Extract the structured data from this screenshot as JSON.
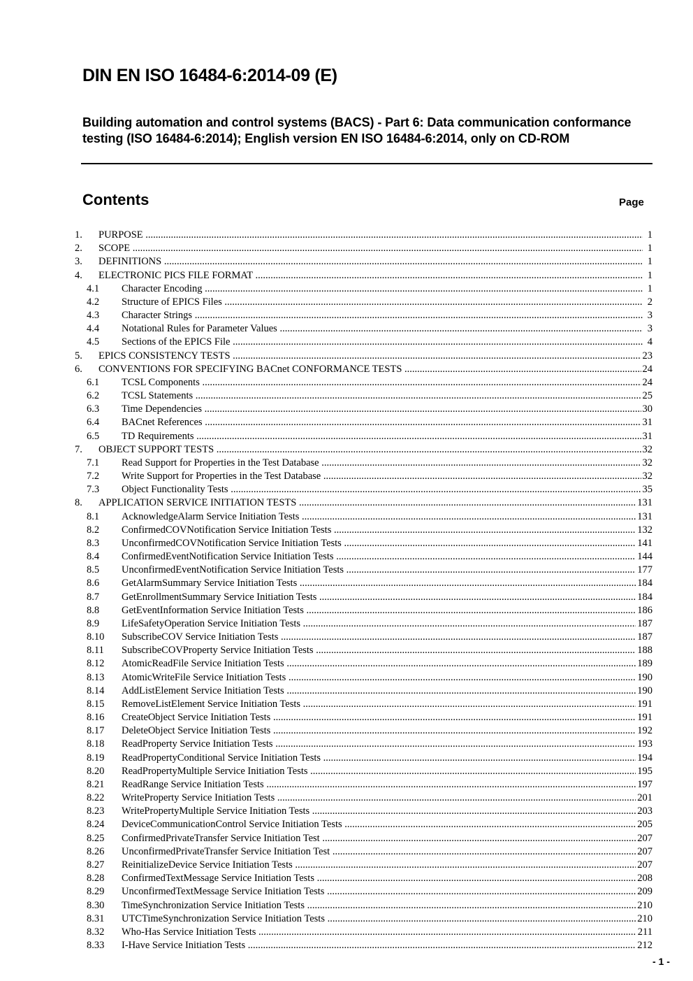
{
  "header": {
    "title": "DIN EN ISO 16484-6:2014-09 (E)",
    "subtitle": "Building automation and control systems (BACS) - Part 6: Data communication conformance testing (ISO  16484-6:2014); English version EN ISO 16484-6:2014, only on CD-ROM"
  },
  "contents": {
    "heading": "Contents",
    "page_label": "Page",
    "entries": [
      {
        "num": "1.",
        "label": "PURPOSE",
        "page": "1",
        "level": 1
      },
      {
        "num": "2.",
        "label": "SCOPE",
        "page": "1",
        "level": 1
      },
      {
        "num": "3.",
        "label": "DEFINITIONS",
        "page": "1",
        "level": 1
      },
      {
        "num": "4.",
        "label": "ELECTRONIC PICS FILE FORMAT",
        "page": "1",
        "level": 1
      },
      {
        "num": "4.1",
        "label": "Character Encoding",
        "page": "1",
        "level": 2
      },
      {
        "num": "4.2",
        "label": "Structure of EPICS Files",
        "page": "2",
        "level": 2
      },
      {
        "num": "4.3",
        "label": "Character Strings",
        "page": "3",
        "level": 2
      },
      {
        "num": "4.4",
        "label": "Notational Rules for Parameter Values",
        "page": "3",
        "level": 2
      },
      {
        "num": "4.5",
        "label": "Sections of the EPICS File",
        "page": "4",
        "level": 2
      },
      {
        "num": "5.",
        "label": "EPICS CONSISTENCY TESTS",
        "page": "23",
        "level": 1
      },
      {
        "num": "6.",
        "label": "CONVENTIONS FOR SPECIFYING BACnet CONFORMANCE TESTS",
        "page": "24",
        "level": 1
      },
      {
        "num": "6.1",
        "label": "TCSL Components",
        "page": "24",
        "level": 2
      },
      {
        "num": "6.2",
        "label": "TCSL Statements",
        "page": "25",
        "level": 2
      },
      {
        "num": "6.3",
        "label": "Time Dependencies",
        "page": "30",
        "level": 2
      },
      {
        "num": "6.4",
        "label": "BACnet References",
        "page": "31",
        "level": 2
      },
      {
        "num": "6.5",
        "label": "TD Requirements",
        "page": "31",
        "level": 2
      },
      {
        "num": "7.",
        "label": "OBJECT SUPPORT TESTS",
        "page": "32",
        "level": 1
      },
      {
        "num": "7.1",
        "label": "Read Support for Properties in the Test Database",
        "page": "32",
        "level": 2
      },
      {
        "num": "7.2",
        "label": "Write Support for Properties in the Test Database",
        "page": "32",
        "level": 2
      },
      {
        "num": "7.3",
        "label": "Object Functionality Tests",
        "page": "35",
        "level": 2
      },
      {
        "num": "8.",
        "label": "APPLICATION SERVICE INITIATION TESTS",
        "page": "131",
        "level": 1
      },
      {
        "num": "8.1",
        "label": "AcknowledgeAlarm Service Initiation Tests",
        "page": "131",
        "level": 2
      },
      {
        "num": "8.2",
        "label": "ConfirmedCOVNotification Service Initiation Tests",
        "page": "132",
        "level": 2
      },
      {
        "num": "8.3",
        "label": "UnconfirmedCOVNotification Service Initiation Tests",
        "page": "141",
        "level": 2
      },
      {
        "num": "8.4",
        "label": "ConfirmedEventNotification Service Initiation Tests",
        "page": "144",
        "level": 2
      },
      {
        "num": "8.5",
        "label": "UnconfirmedEventNotification Service Initiation Tests",
        "page": "177",
        "level": 2
      },
      {
        "num": "8.6",
        "label": "GetAlarmSummary Service Initiation Tests",
        "page": "184",
        "level": 2
      },
      {
        "num": "8.7",
        "label": "GetEnrollmentSummary Service Initiation Tests",
        "page": "184",
        "level": 2
      },
      {
        "num": "8.8",
        "label": "GetEventInformation Service Initiation Tests",
        "page": "186",
        "level": 2
      },
      {
        "num": "8.9",
        "label": "LifeSafetyOperation Service Initiation Tests",
        "page": "187",
        "level": 2
      },
      {
        "num": "8.10",
        "label": "SubscribeCOV Service Initiation Tests",
        "page": "187",
        "level": 2
      },
      {
        "num": "8.11",
        "label": "SubscribeCOVProperty Service Initiation Tests",
        "page": "188",
        "level": 2
      },
      {
        "num": "8.12",
        "label": "AtomicReadFile Service Initiation Tests",
        "page": "189",
        "level": 2
      },
      {
        "num": "8.13",
        "label": "AtomicWriteFile Service Initiation Tests",
        "page": "190",
        "level": 2
      },
      {
        "num": "8.14",
        "label": "AddListElement Service Initiation Tests",
        "page": "190",
        "level": 2
      },
      {
        "num": "8.15",
        "label": "RemoveListElement Service Initiation Tests",
        "page": "191",
        "level": 2
      },
      {
        "num": "8.16",
        "label": "CreateObject Service Initiation Tests",
        "page": "191",
        "level": 2
      },
      {
        "num": "8.17",
        "label": "DeleteObject Service Initiation Tests",
        "page": "192",
        "level": 2
      },
      {
        "num": "8.18",
        "label": "ReadProperty Service Initiation Tests",
        "page": "193",
        "level": 2
      },
      {
        "num": "8.19",
        "label": "ReadPropertyConditional Service Initiation Tests",
        "page": "194",
        "level": 2
      },
      {
        "num": "8.20",
        "label": "ReadPropertyMultiple Service Initiation Tests",
        "page": "195",
        "level": 2
      },
      {
        "num": "8.21",
        "label": "ReadRange Service Initiation Tests",
        "page": "197",
        "level": 2
      },
      {
        "num": "8.22",
        "label": "WriteProperty Service Initiation Tests",
        "page": "201",
        "level": 2
      },
      {
        "num": "8.23",
        "label": "WritePropertyMultiple Service Initiation Tests",
        "page": "203",
        "level": 2
      },
      {
        "num": "8.24",
        "label": "DeviceCommunicationControl Service Initiation Tests",
        "page": "205",
        "level": 2
      },
      {
        "num": "8.25",
        "label": "ConfirmedPrivateTransfer Service Initiation Test",
        "page": "207",
        "level": 2
      },
      {
        "num": "8.26",
        "label": "UnconfirmedPrivateTransfer Service Initiation Test",
        "page": "207",
        "level": 2
      },
      {
        "num": "8.27",
        "label": "ReinitializeDevice Service Initiation Tests",
        "page": "207",
        "level": 2
      },
      {
        "num": "8.28",
        "label": "ConfirmedTextMessage Service Initiation Tests",
        "page": "208",
        "level": 2
      },
      {
        "num": "8.29",
        "label": "UnconfirmedTextMessage Service Initiation Tests",
        "page": "209",
        "level": 2
      },
      {
        "num": "8.30",
        "label": "TimeSynchronization Service Initiation Tests",
        "page": "210",
        "level": 2
      },
      {
        "num": "8.31",
        "label": "UTCTimeSynchronization Service Initiation Tests",
        "page": "210",
        "level": 2
      },
      {
        "num": "8.32",
        "label": "Who-Has Service Initiation Tests",
        "page": "211",
        "level": 2
      },
      {
        "num": "8.33",
        "label": "I-Have Service Initiation Tests",
        "page": "212",
        "level": 2
      }
    ]
  },
  "footer": {
    "page_number": "- 1 -"
  }
}
